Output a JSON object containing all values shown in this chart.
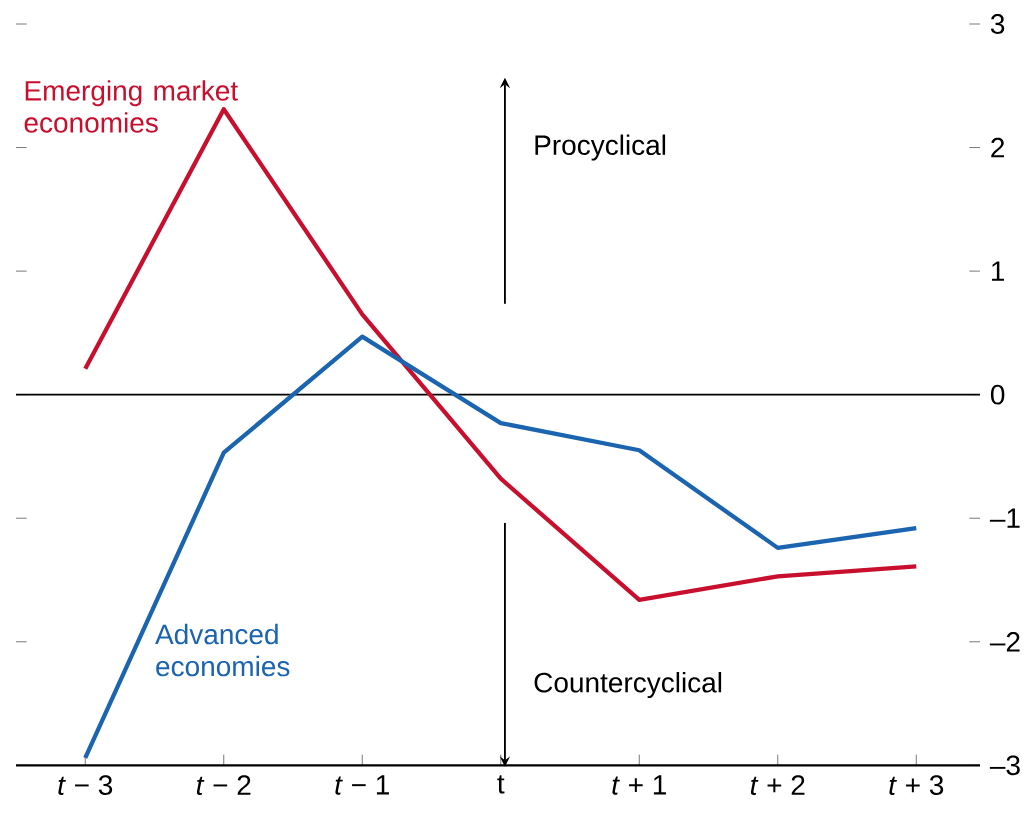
{
  "chart_data": {
    "type": "line",
    "categories": [
      "*t* − 3",
      "*t* − 2",
      "*t* − 1",
      "t",
      "*t* + 1",
      "*t* + 2",
      "*t* + 3"
    ],
    "series": [
      {
        "name": "Emerging market economies",
        "color": "#c8102e",
        "values": [
          0.21,
          2.31,
          0.65,
          -0.68,
          -1.66,
          -1.47,
          -1.39
        ]
      },
      {
        "name": "Advanced economies",
        "color": "#1b64b0",
        "values": [
          -2.94,
          -0.47,
          0.47,
          -0.23,
          -0.45,
          -1.24,
          -1.08
        ]
      }
    ],
    "ylim": [
      -3,
      3
    ],
    "yticks": [
      3,
      2,
      1,
      0,
      {
        "value": -1,
        "label": "–1"
      },
      {
        "value": -2,
        "label": "–2"
      },
      {
        "value": -3,
        "label": "–3"
      }
    ],
    "ref_lines": [
      {
        "axis": "y",
        "value": 0,
        "color": "#000000"
      }
    ],
    "annotations": [
      "Procyclical",
      "Countercyclical"
    ],
    "grid": false,
    "marker": "none",
    "line_style": "solid"
  }
}
